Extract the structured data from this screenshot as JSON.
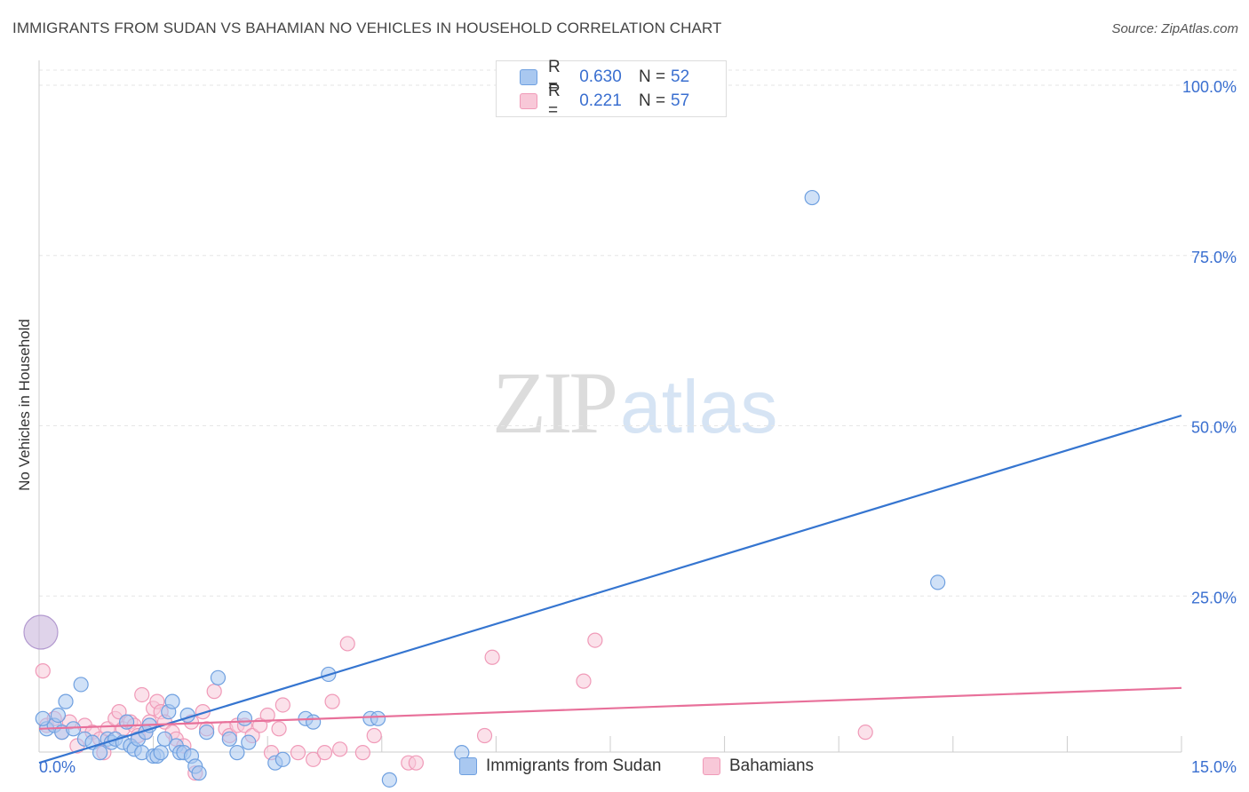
{
  "title": "IMMIGRANTS FROM SUDAN VS BAHAMIAN NO VEHICLES IN HOUSEHOLD CORRELATION CHART",
  "source": "Source: ZipAtlas.com",
  "watermark": {
    "zip": "ZIP",
    "atlas": "atlas"
  },
  "colors": {
    "blue": "#6fa0e0",
    "blue_fill": "#a9c8f0",
    "blue_line": "#3575d0",
    "pink": "#f09ab8",
    "pink_fill": "#f8c8d8",
    "pink_line": "#e8709a",
    "accent_text": "#3a6fd0",
    "grid": "#e6e6e6"
  },
  "legend": {
    "series": [
      {
        "r_label": "R =",
        "r_value": "0.630",
        "n_label": "N =",
        "n_value": "52"
      },
      {
        "r_label": "R =",
        "r_value": "0.221",
        "n_label": "N =",
        "n_value": "57"
      }
    ]
  },
  "chart_data": {
    "type": "scatter",
    "title": "IMMIGRANTS FROM SUDAN VS BAHAMIAN NO VEHICLES IN HOUSEHOLD CORRELATION CHART",
    "xlabel": "",
    "ylabel": "No Vehicles in Household",
    "xlim": [
      0,
      15
    ],
    "ylim": [
      0,
      100
    ],
    "x_tick_labels": [
      "0.0%",
      "15.0%"
    ],
    "y_tick_values": [
      25,
      50,
      75,
      100
    ],
    "y_tick_labels": [
      "25.0%",
      "50.0%",
      "75.0%",
      "100.0%"
    ],
    "grid": true,
    "series": [
      {
        "name": "Immigrants from Sudan",
        "color": "blue",
        "trend": {
          "x": [
            0,
            15
          ],
          "y": [
            0.5,
            51.5
          ]
        },
        "points": [
          {
            "x": 0.1,
            "y": 5.5
          },
          {
            "x": 0.2,
            "y": 6
          },
          {
            "x": 0.25,
            "y": 7.5
          },
          {
            "x": 0.3,
            "y": 5
          },
          {
            "x": 0.35,
            "y": 9.5
          },
          {
            "x": 0.55,
            "y": 12
          },
          {
            "x": 0.6,
            "y": 4
          },
          {
            "x": 0.7,
            "y": 3.5
          },
          {
            "x": 0.8,
            "y": 2
          },
          {
            "x": 0.9,
            "y": 4
          },
          {
            "x": 0.95,
            "y": 3.5
          },
          {
            "x": 1.0,
            "y": 4
          },
          {
            "x": 1.1,
            "y": 3.5
          },
          {
            "x": 1.15,
            "y": 6.5
          },
          {
            "x": 1.2,
            "y": 3
          },
          {
            "x": 1.25,
            "y": 2.5
          },
          {
            "x": 1.3,
            "y": 4
          },
          {
            "x": 1.35,
            "y": 2
          },
          {
            "x": 1.4,
            "y": 5
          },
          {
            "x": 1.45,
            "y": 6
          },
          {
            "x": 1.5,
            "y": 1.5
          },
          {
            "x": 1.55,
            "y": 1.5
          },
          {
            "x": 1.6,
            "y": 2
          },
          {
            "x": 1.65,
            "y": 4
          },
          {
            "x": 1.7,
            "y": 8
          },
          {
            "x": 1.75,
            "y": 9.5
          },
          {
            "x": 1.8,
            "y": 3
          },
          {
            "x": 1.85,
            "y": 2
          },
          {
            "x": 1.9,
            "y": 2
          },
          {
            "x": 1.95,
            "y": 7.5
          },
          {
            "x": 2.0,
            "y": 1.5
          },
          {
            "x": 2.05,
            "y": 0
          },
          {
            "x": 2.1,
            "y": -1
          },
          {
            "x": 2.2,
            "y": 5
          },
          {
            "x": 2.35,
            "y": 13
          },
          {
            "x": 2.5,
            "y": 4
          },
          {
            "x": 2.6,
            "y": 2
          },
          {
            "x": 2.7,
            "y": 7
          },
          {
            "x": 2.75,
            "y": 3.5
          },
          {
            "x": 3.1,
            "y": 0.5
          },
          {
            "x": 3.2,
            "y": 1
          },
          {
            "x": 3.5,
            "y": 7
          },
          {
            "x": 3.6,
            "y": 6.5
          },
          {
            "x": 3.8,
            "y": 13.5
          },
          {
            "x": 4.35,
            "y": 7
          },
          {
            "x": 4.45,
            "y": 7
          },
          {
            "x": 4.6,
            "y": -2
          },
          {
            "x": 5.55,
            "y": 2
          },
          {
            "x": 10.15,
            "y": 83.5
          },
          {
            "x": 11.8,
            "y": 27
          },
          {
            "x": 0.05,
            "y": 7
          },
          {
            "x": 0.45,
            "y": 5.5
          }
        ]
      },
      {
        "name": "Bahamians",
        "color": "pink",
        "trend": {
          "x": [
            0,
            15
          ],
          "y": [
            5.5,
            11.5
          ]
        },
        "points": [
          {
            "x": 0.05,
            "y": 14
          },
          {
            "x": 0.1,
            "y": 6
          },
          {
            "x": 0.2,
            "y": 7
          },
          {
            "x": 0.3,
            "y": 5
          },
          {
            "x": 0.4,
            "y": 6.5
          },
          {
            "x": 0.5,
            "y": 3
          },
          {
            "x": 0.6,
            "y": 6
          },
          {
            "x": 0.7,
            "y": 5
          },
          {
            "x": 0.8,
            "y": 4
          },
          {
            "x": 0.85,
            "y": 2
          },
          {
            "x": 0.9,
            "y": 5.5
          },
          {
            "x": 1.0,
            "y": 7
          },
          {
            "x": 1.05,
            "y": 8
          },
          {
            "x": 1.1,
            "y": 5.5
          },
          {
            "x": 1.2,
            "y": 6.5
          },
          {
            "x": 1.25,
            "y": 6
          },
          {
            "x": 1.3,
            "y": 4.5
          },
          {
            "x": 1.35,
            "y": 10.5
          },
          {
            "x": 1.4,
            "y": 5
          },
          {
            "x": 1.45,
            "y": 6.5
          },
          {
            "x": 1.5,
            "y": 8.5
          },
          {
            "x": 1.55,
            "y": 9.5
          },
          {
            "x": 1.6,
            "y": 8
          },
          {
            "x": 1.65,
            "y": 6.5
          },
          {
            "x": 1.75,
            "y": 5
          },
          {
            "x": 1.8,
            "y": 4
          },
          {
            "x": 1.9,
            "y": 3
          },
          {
            "x": 2.0,
            "y": 6.5
          },
          {
            "x": 2.05,
            "y": -1
          },
          {
            "x": 2.15,
            "y": 8
          },
          {
            "x": 2.2,
            "y": 5.5
          },
          {
            "x": 2.3,
            "y": 11
          },
          {
            "x": 2.45,
            "y": 5.5
          },
          {
            "x": 2.5,
            "y": 4.5
          },
          {
            "x": 2.6,
            "y": 6
          },
          {
            "x": 2.7,
            "y": 6
          },
          {
            "x": 2.8,
            "y": 4.5
          },
          {
            "x": 2.9,
            "y": 6
          },
          {
            "x": 3.0,
            "y": 7.5
          },
          {
            "x": 3.05,
            "y": 2
          },
          {
            "x": 3.15,
            "y": 5.5
          },
          {
            "x": 3.2,
            "y": 9
          },
          {
            "x": 3.4,
            "y": 2
          },
          {
            "x": 3.6,
            "y": 1
          },
          {
            "x": 3.75,
            "y": 2
          },
          {
            "x": 3.85,
            "y": 9.5
          },
          {
            "x": 3.95,
            "y": 2.5
          },
          {
            "x": 4.05,
            "y": 18
          },
          {
            "x": 4.25,
            "y": 2
          },
          {
            "x": 4.4,
            "y": 4.5
          },
          {
            "x": 4.85,
            "y": 0.5
          },
          {
            "x": 4.95,
            "y": 0.5
          },
          {
            "x": 5.85,
            "y": 4.5
          },
          {
            "x": 5.95,
            "y": 16
          },
          {
            "x": 7.15,
            "y": 12.5
          },
          {
            "x": 7.3,
            "y": 18.5
          },
          {
            "x": 10.85,
            "y": 5
          }
        ]
      }
    ]
  }
}
